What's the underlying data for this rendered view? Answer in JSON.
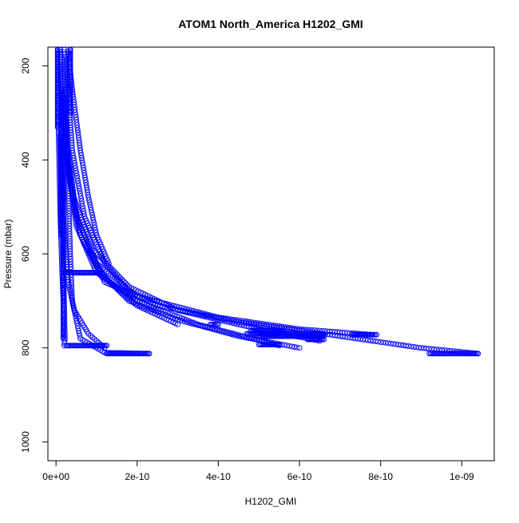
{
  "chart_data": {
    "type": "scatter",
    "title": "ATOM1 North_America H1202_GMI",
    "xlabel": "H1202_GMI",
    "ylabel": "Pressure (mbar)",
    "xlim": [
      -2e-11,
      1.08e-09
    ],
    "ylim": [
      1040,
      160
    ],
    "y_reversed": true,
    "grid": false,
    "legend": "none",
    "marker": "open-circle",
    "marker_color": "#0000ff",
    "x_ticks": [
      {
        "value": 0,
        "label": "0e+00"
      },
      {
        "value": 2e-10,
        "label": "2e-10"
      },
      {
        "value": 4e-10,
        "label": "4e-10"
      },
      {
        "value": 6e-10,
        "label": "6e-10"
      },
      {
        "value": 8e-10,
        "label": "8e-10"
      },
      {
        "value": 1e-09,
        "label": "1e-09"
      }
    ],
    "y_ticks": [
      {
        "value": 200,
        "label": "200"
      },
      {
        "value": 400,
        "label": "400"
      },
      {
        "value": 600,
        "label": "600"
      },
      {
        "value": 800,
        "label": "800"
      },
      {
        "value": 1000,
        "label": "1000"
      }
    ],
    "profiles": [
      {
        "x": [
          1e-11,
          1.2e-11,
          1.5e-11,
          1.8e-11,
          2e-11,
          2.2e-11,
          2e-11
        ],
        "y": [
          160,
          300,
          450,
          600,
          700,
          780,
          795
        ]
      },
      {
        "x": [
          4e-12,
          5e-12,
          6e-12,
          1e-11,
          1.5e-11,
          1.8e-11
        ],
        "y": [
          170,
          230,
          330,
          500,
          640,
          700
        ]
      },
      {
        "x": [
          2e-11,
          2.5e-11,
          3e-11,
          3.5e-11,
          4e-11,
          6e-11,
          1.2e-10,
          2.3e-10
        ],
        "y": [
          160,
          300,
          450,
          600,
          700,
          780,
          810,
          812
        ]
      },
      {
        "x": [
          2e-11,
          3e-11,
          6e-11,
          1.2e-10,
          2.5e-10,
          4.5e-10,
          7e-10,
          9e-10,
          1.04e-09
        ],
        "y": [
          260,
          420,
          560,
          660,
          710,
          745,
          775,
          800,
          812
        ]
      },
      {
        "x": [
          3e-11,
          5e-11,
          1e-10,
          2e-10,
          4e-10,
          6e-10,
          7.8e-10
        ],
        "y": [
          380,
          520,
          620,
          690,
          735,
          760,
          772
        ]
      },
      {
        "x": [
          2.5e-11,
          4e-11,
          7e-11,
          1.2e-10,
          2e-10,
          3.5e-10,
          5.5e-10
        ],
        "y": [
          180,
          380,
          520,
          620,
          700,
          750,
          795
        ]
      },
      {
        "x": [
          1.5e-11,
          4e-11,
          9e-11,
          1.8e-10,
          3e-10,
          5e-10,
          6.5e-10
        ],
        "y": [
          300,
          470,
          590,
          670,
          720,
          760,
          785
        ]
      },
      {
        "x": [
          2e-11,
          5e-11,
          1e-10,
          2e-10
        ],
        "y": [
          350,
          540,
          640,
          700
        ]
      },
      {
        "x": [
          1.5e-11,
          3e-11,
          6e-11,
          1.1e-10,
          1.8e-10,
          3e-10,
          4.5e-10,
          6e-10
        ],
        "y": [
          250,
          430,
          560,
          640,
          700,
          740,
          775,
          800
        ]
      },
      {
        "x": [
          3e-11,
          4e-11,
          6e-11,
          8e-11,
          1e-10,
          1.3e-10
        ],
        "y": [
          170,
          250,
          380,
          480,
          560,
          620
        ]
      },
      {
        "x": [
          1e-11,
          1.5e-11,
          2.2e-11,
          3e-11,
          4.5e-11,
          8e-11,
          1.2e-10
        ],
        "y": [
          350,
          480,
          580,
          660,
          720,
          770,
          800
        ]
      },
      {
        "x": [
          1.5e-11,
          3e-11,
          6e-11,
          1.2e-10,
          2e-10,
          3e-10
        ],
        "y": [
          200,
          420,
          560,
          650,
          710,
          750
        ]
      }
    ],
    "segments": [
      {
        "x_start": 2e-11,
        "x_end": 1.05e-10,
        "y": 640
      },
      {
        "x_start": 2.5e-11,
        "x_end": 1.25e-10,
        "y": 795
      },
      {
        "x_start": 1.25e-10,
        "x_end": 2.3e-10,
        "y": 812
      },
      {
        "x_start": 9.2e-10,
        "x_end": 1.04e-09,
        "y": 812
      },
      {
        "x_start": 4.7e-10,
        "x_end": 6.6e-10,
        "y": 770
      },
      {
        "x_start": 5e-10,
        "x_end": 6.6e-10,
        "y": 775
      },
      {
        "x_start": 7.3e-10,
        "x_end": 7.9e-10,
        "y": 772
      },
      {
        "x_start": 3.8e-10,
        "x_end": 4e-10,
        "y": 750
      },
      {
        "x_start": 4.8e-10,
        "x_end": 5.6e-10,
        "y": 763
      },
      {
        "x_start": 5e-10,
        "x_end": 5.5e-10,
        "y": 793
      },
      {
        "x_start": 6.2e-10,
        "x_end": 6.6e-10,
        "y": 782
      }
    ],
    "columns": [
      {
        "x": 4e-12,
        "y_start": 160,
        "y_end": 330
      },
      {
        "x": 1.2e-11,
        "y_start": 260,
        "y_end": 560
      },
      {
        "x": 1.8e-11,
        "y_start": 360,
        "y_end": 780
      },
      {
        "x": 3.5e-11,
        "y_start": 160,
        "y_end": 300
      }
    ]
  }
}
